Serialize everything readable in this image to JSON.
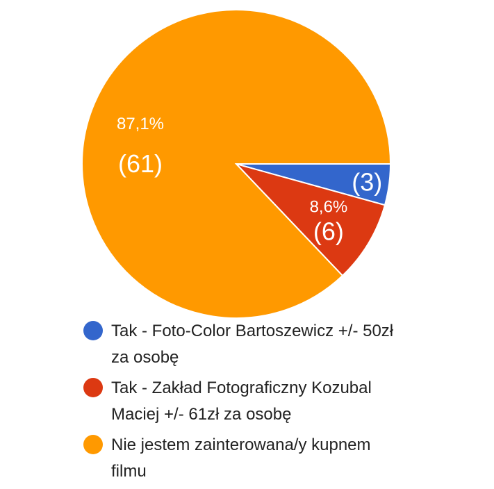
{
  "chart_data": {
    "type": "pie",
    "title": "",
    "slices": [
      {
        "label": "Tak - Foto-Color Bartoszewicz +/- 50zł za osobę",
        "percent": 4.3,
        "count": 3,
        "color": "#3366cc",
        "percent_label": "",
        "count_label": "(3)"
      },
      {
        "label": "Tak - Zakład Fotograficzny Kozubal Maciej +/- 61zł za osobę",
        "percent": 8.6,
        "count": 6,
        "color": "#dc3912",
        "percent_label": "8,6%",
        "count_label": "(6)"
      },
      {
        "label": "Nie jestem zainterowana/y kupnem filmu",
        "percent": 87.1,
        "count": 61,
        "color": "#ff9900",
        "percent_label": "87,1%",
        "count_label": "(61)"
      }
    ],
    "legend_position": "bottom"
  }
}
